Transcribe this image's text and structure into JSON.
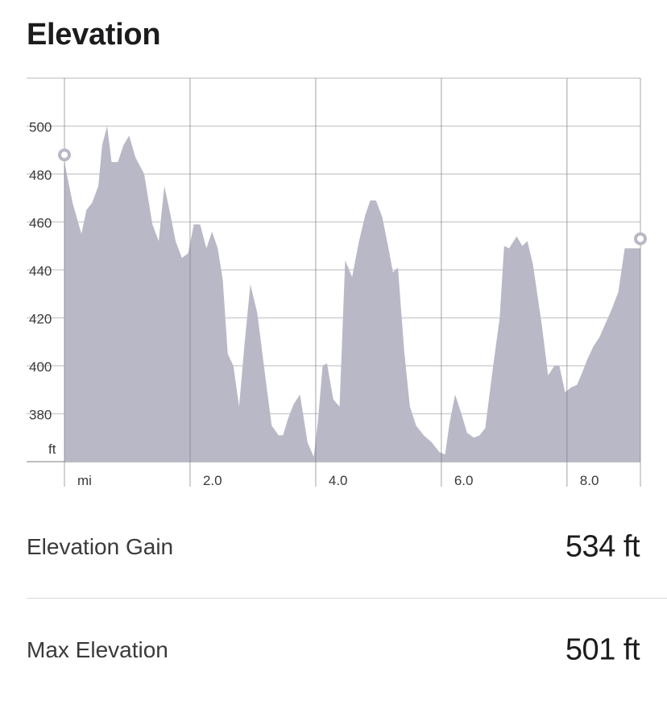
{
  "header": {
    "title": "Elevation"
  },
  "chart_data": {
    "type": "area",
    "ylabel": "ft",
    "xlabel": "mi",
    "xlim": [
      0,
      9.17
    ],
    "ylim": [
      360,
      520
    ],
    "y_ticks": [
      500,
      480,
      460,
      440,
      420,
      400,
      380
    ],
    "y_tick_labels": [
      "500",
      "480",
      "460",
      "440",
      "420",
      "400",
      "380"
    ],
    "x_ticks": [
      0,
      2,
      4,
      6,
      8
    ],
    "x_tick_labels": [
      "mi",
      "2.0",
      "4.0",
      "6.0",
      "8.0"
    ],
    "grid": true,
    "fill_color": "#b9b8c6",
    "marker_color": "#b9b8c6",
    "series": [
      {
        "x": [
          0.0,
          0.13,
          0.27,
          0.35,
          0.44,
          0.54,
          0.6,
          0.68,
          0.75,
          0.85,
          0.94,
          1.03,
          1.13,
          1.27,
          1.4,
          1.5,
          1.59,
          1.68,
          1.77,
          1.87,
          1.97,
          2.06,
          2.16,
          2.26,
          2.35,
          2.44,
          2.52,
          2.6,
          2.69,
          2.78,
          2.87,
          2.96,
          3.07,
          3.2,
          3.3,
          3.41,
          3.48,
          3.56,
          3.65,
          3.75,
          3.87,
          3.97,
          4.04,
          4.11,
          4.18,
          4.28,
          4.38,
          4.47,
          4.58,
          4.69,
          4.79,
          4.87,
          4.96,
          5.06,
          5.16,
          5.23,
          5.31,
          5.41,
          5.5,
          5.6,
          5.72,
          5.85,
          5.97,
          6.06,
          6.13,
          6.22,
          6.32,
          6.41,
          6.52,
          6.61,
          6.7,
          6.82,
          6.93,
          7.0,
          7.08,
          7.2,
          7.29,
          7.37,
          7.46,
          7.6,
          7.7,
          7.8,
          7.88,
          7.97,
          8.07,
          8.16,
          8.24,
          8.33,
          8.42,
          8.52,
          8.62,
          8.72,
          8.82,
          8.92,
          9.0,
          9.1,
          9.17
        ],
        "y": [
          485,
          468,
          455,
          465,
          468,
          475,
          492,
          500,
          485,
          485,
          492,
          496,
          487,
          480,
          459,
          452,
          475,
          464,
          452,
          445,
          447,
          459,
          459,
          449,
          456,
          449,
          436,
          405,
          400,
          383,
          410,
          434,
          422,
          395,
          375,
          371,
          371,
          378,
          384,
          388,
          368,
          362,
          378,
          400,
          401,
          386,
          383,
          444,
          437,
          452,
          463,
          469,
          469,
          462,
          449,
          439,
          441,
          406,
          383,
          375,
          371,
          368,
          364,
          363,
          376,
          388,
          380,
          372,
          370,
          371,
          374,
          399,
          420,
          450,
          449,
          454,
          450,
          452,
          442,
          417,
          396,
          400,
          400,
          389,
          391,
          392,
          397,
          403,
          408,
          412,
          418,
          424,
          431,
          449,
          449,
          449,
          449
        ]
      }
    ],
    "start_marker": {
      "x": 0.0,
      "y": 488
    },
    "end_marker": {
      "x": 9.17,
      "y": 453
    }
  },
  "stats": {
    "gain_label": "Elevation Gain",
    "gain_value": "534 ft",
    "max_label": "Max Elevation",
    "max_value": "501 ft"
  }
}
